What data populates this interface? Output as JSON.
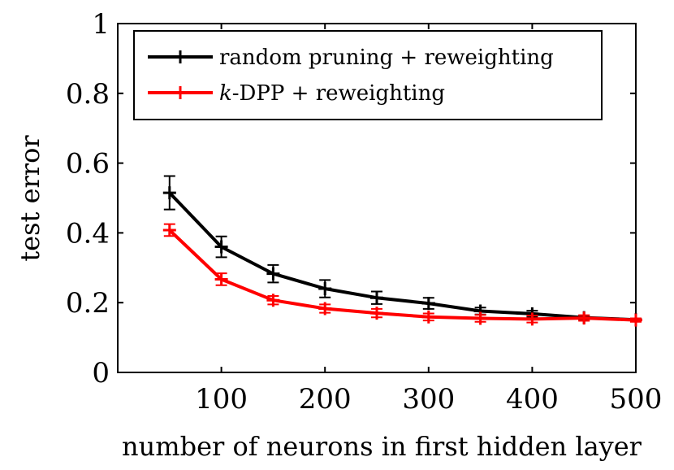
{
  "chart_data": {
    "type": "line",
    "xlabel": "number of neurons in first hidden layer",
    "ylabel": "test error",
    "xlim": [
      0,
      500
    ],
    "ylim": [
      0,
      1
    ],
    "xticks": [
      100,
      200,
      300,
      400,
      500
    ],
    "yticks": [
      0,
      0.2,
      0.4,
      0.6,
      0.8,
      1
    ],
    "ytick_labels": [
      "0",
      "0.2",
      "0.4",
      "0.6",
      "0.8",
      "1"
    ],
    "grid": false,
    "legend_position": "top-right",
    "x": [
      50,
      100,
      150,
      200,
      250,
      300,
      350,
      400,
      450,
      500
    ],
    "series": [
      {
        "name": "random pruning + reweighting",
        "color": "#000000",
        "values": [
          0.515,
          0.36,
          0.283,
          0.24,
          0.214,
          0.198,
          0.176,
          0.168,
          0.157,
          0.151
        ],
        "error": [
          0.048,
          0.03,
          0.025,
          0.025,
          0.018,
          0.016,
          0.01,
          0.009,
          0.006,
          0.004
        ]
      },
      {
        "name": "k-DPP + reweighting",
        "name_italic_prefix": "k",
        "name_rest": "-DPP + reweighting",
        "color": "#ff0000",
        "values": [
          0.408,
          0.267,
          0.207,
          0.183,
          0.17,
          0.159,
          0.155,
          0.153,
          0.156,
          0.15
        ],
        "error": [
          0.017,
          0.017,
          0.012,
          0.012,
          0.012,
          0.01,
          0.01,
          0.01,
          0.008,
          0.005
        ]
      }
    ]
  }
}
